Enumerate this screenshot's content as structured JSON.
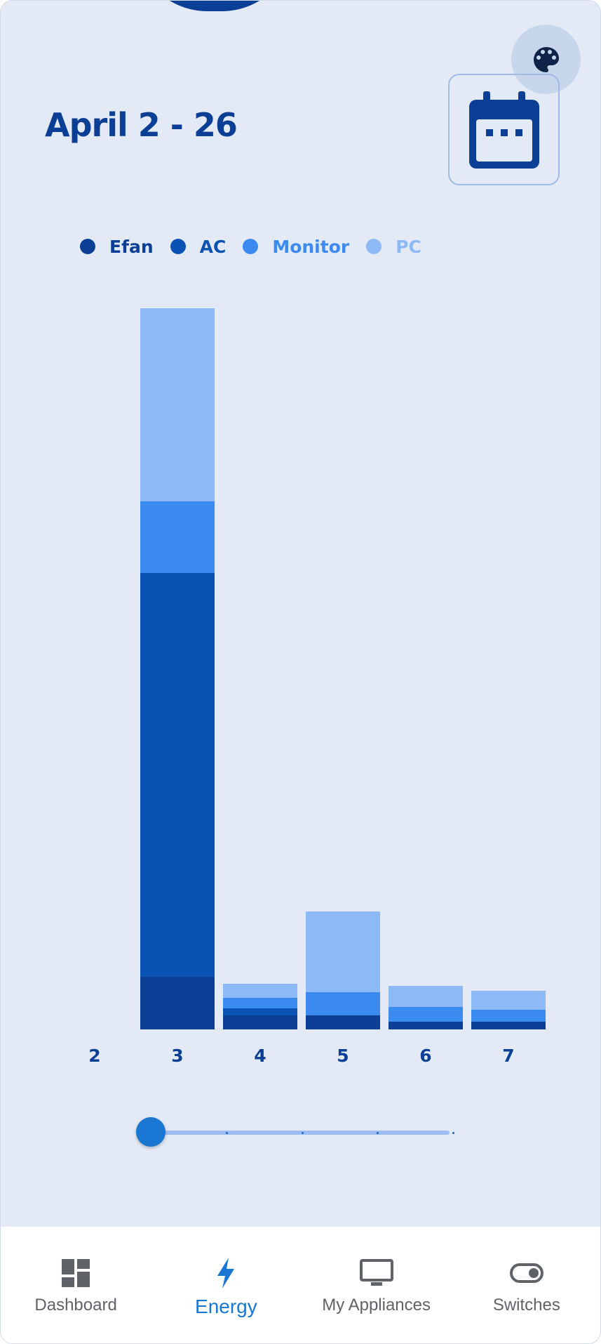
{
  "header": {
    "title": "April 2 - 26"
  },
  "icons": {
    "palette": "palette-icon",
    "calendar": "calendar-icon"
  },
  "colors": {
    "background": "#e4eaf5",
    "efan": "#0b3f95",
    "ac": "#0a52b4",
    "monitor": "#3b8af0",
    "pc": "#8db9f6"
  },
  "chart_data": {
    "type": "bar",
    "stacked": true,
    "categories": [
      "2",
      "3",
      "4",
      "5",
      "6",
      "7"
    ],
    "series": [
      {
        "name": "Efan",
        "color": "#0b3f95",
        "values": [
          0,
          75,
          20,
          20,
          11,
          11
        ]
      },
      {
        "name": "AC",
        "color": "#0a52b4",
        "values": [
          0,
          575,
          10,
          0,
          0,
          0
        ]
      },
      {
        "name": "Monitor",
        "color": "#3b8af0",
        "values": [
          0,
          102,
          15,
          33,
          21,
          17
        ]
      },
      {
        "name": "PC",
        "color": "#8db9f6",
        "values": [
          0,
          275,
          20,
          115,
          30,
          27
        ]
      }
    ],
    "ylim": [
      0,
      1030
    ],
    "grid": false,
    "legend_position": "top"
  },
  "slider": {
    "value": 0,
    "min": 0,
    "max": 4
  },
  "bottom_nav": {
    "items": [
      {
        "label": "Dashboard",
        "icon": "dashboard-icon",
        "active": false
      },
      {
        "label": "Energy",
        "icon": "bolt-icon",
        "active": true
      },
      {
        "label": "My Appliances",
        "icon": "monitor-icon",
        "active": false
      },
      {
        "label": "Switches",
        "icon": "toggle-icon",
        "active": false
      }
    ]
  }
}
